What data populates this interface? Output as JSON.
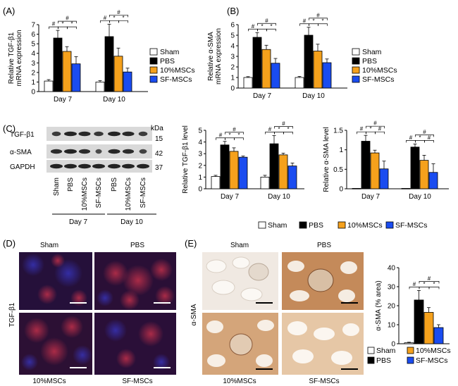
{
  "panels": {
    "A": "(A)",
    "B": "(B)",
    "C": "(C)",
    "D": "(D)",
    "E": "(E)"
  },
  "groups": [
    "Sham",
    "PBS",
    "10%MSCs",
    "SF-MSCs"
  ],
  "colors": {
    "Sham": "#ffffff",
    "PBS": "#000000",
    "10%MSCs": "#f5a11c",
    "SF-MSCs": "#1a4cf0"
  },
  "symbols": {
    "hash": "#",
    "star": "*"
  },
  "blot": {
    "bands": [
      "TGF-β1",
      "α-SMA",
      "GAPDH"
    ],
    "kda_header": "kDa",
    "kda": [
      "15",
      "42",
      "37"
    ],
    "lanes": [
      "Sham",
      "PBS",
      "10%MSCs",
      "SF-MSCs",
      "PBS",
      "10%MSCs",
      "SF-MSCs"
    ],
    "day_labels": [
      "Day 7",
      "Day 10"
    ]
  },
  "chart_data": [
    {
      "id": "A",
      "type": "bar",
      "ylabel": "Relative TGF-β1 mRNA expression",
      "ylim": [
        0,
        7
      ],
      "yticks": [
        0,
        1,
        2,
        3,
        4,
        5,
        6,
        7
      ],
      "categories": [
        "Day 7",
        "Day 10"
      ],
      "series": [
        {
          "name": "Sham",
          "values": [
            1.1,
            1.0
          ],
          "errors": [
            0.15,
            0.15
          ]
        },
        {
          "name": "PBS",
          "values": [
            5.6,
            5.75
          ],
          "errors": [
            0.8,
            1.3
          ]
        },
        {
          "name": "10%MSCs",
          "values": [
            4.2,
            3.7
          ],
          "errors": [
            0.5,
            0.85
          ]
        },
        {
          "name": "SF-MSCs",
          "values": [
            2.9,
            2.05
          ],
          "errors": [
            0.75,
            0.4
          ]
        }
      ]
    },
    {
      "id": "B",
      "type": "bar",
      "ylabel": "Relative α-SMA mRNA expression",
      "ylim": [
        0,
        6
      ],
      "yticks": [
        0,
        1,
        2,
        3,
        4,
        5,
        6
      ],
      "categories": [
        "Day 7",
        "Day 10"
      ],
      "series": [
        {
          "name": "Sham",
          "values": [
            1.0,
            1.0
          ],
          "errors": [
            0.08,
            0.1
          ]
        },
        {
          "name": "PBS",
          "values": [
            4.8,
            5.0
          ],
          "errors": [
            0.45,
            0.75
          ]
        },
        {
          "name": "10%MSCs",
          "values": [
            3.65,
            3.5
          ],
          "errors": [
            0.4,
            0.65
          ]
        },
        {
          "name": "SF-MSCs",
          "values": [
            2.35,
            2.4
          ],
          "errors": [
            0.45,
            0.35
          ]
        }
      ]
    },
    {
      "id": "C1",
      "type": "bar",
      "ylabel": "Relative TGF-β1 level",
      "ylim": [
        0,
        5
      ],
      "yticks": [
        0,
        1,
        2,
        3,
        4,
        5
      ],
      "categories": [
        "Day 7",
        "Day 10"
      ],
      "series": [
        {
          "name": "Sham",
          "values": [
            1.05,
            1.0
          ],
          "errors": [
            0.1,
            0.15
          ]
        },
        {
          "name": "PBS",
          "values": [
            3.75,
            3.85
          ],
          "errors": [
            0.3,
            0.7
          ]
        },
        {
          "name": "10%MSCs",
          "values": [
            3.2,
            2.9
          ],
          "errors": [
            0.3,
            0.15
          ]
        },
        {
          "name": "SF-MSCs",
          "values": [
            2.7,
            1.95
          ],
          "errors": [
            0.1,
            0.25
          ]
        }
      ]
    },
    {
      "id": "C2",
      "type": "bar",
      "ylabel": "Relative α-SMA level",
      "ylim": [
        0,
        1.5
      ],
      "yticks": [
        0,
        0.5,
        1,
        1.5
      ],
      "ytick_labels": [
        "0",
        "0.5",
        "1",
        "1.5"
      ],
      "categories": [
        "Day 7",
        "Day 10"
      ],
      "series": [
        {
          "name": "Sham",
          "values": [
            0.01,
            0.01
          ],
          "errors": [
            0,
            0
          ]
        },
        {
          "name": "PBS",
          "values": [
            1.22,
            1.07
          ],
          "errors": [
            0.15,
            0.08
          ]
        },
        {
          "name": "10%MSCs",
          "values": [
            0.92,
            0.73
          ],
          "errors": [
            0.07,
            0.13
          ]
        },
        {
          "name": "SF-MSCs",
          "values": [
            0.51,
            0.42
          ],
          "errors": [
            0.2,
            0.22
          ]
        }
      ]
    },
    {
      "id": "E",
      "type": "bar",
      "ylabel": "α-SMA (% area)",
      "ylim": [
        0,
        40
      ],
      "yticks": [
        0,
        10,
        20,
        30,
        40
      ],
      "categories": [
        ""
      ],
      "series": [
        {
          "name": "Sham",
          "values": [
            0.5
          ],
          "errors": [
            0.3
          ]
        },
        {
          "name": "PBS",
          "values": [
            23
          ],
          "errors": [
            5
          ]
        },
        {
          "name": "10%MSCs",
          "values": [
            16.5
          ],
          "errors": [
            2.5
          ]
        },
        {
          "name": "SF-MSCs",
          "values": [
            8.5
          ],
          "errors": [
            1.5
          ]
        }
      ]
    }
  ],
  "micrographs": {
    "D": {
      "side_label": "TGF-β1",
      "top": [
        "Sham",
        "PBS"
      ],
      "bottom": [
        "10%MSCs",
        "SF-MSCs"
      ]
    },
    "E": {
      "side_label": "α-SMA",
      "top": [
        "Sham",
        "PBS"
      ],
      "bottom": [
        "10%MSCs",
        "SF-MSCs"
      ]
    }
  }
}
